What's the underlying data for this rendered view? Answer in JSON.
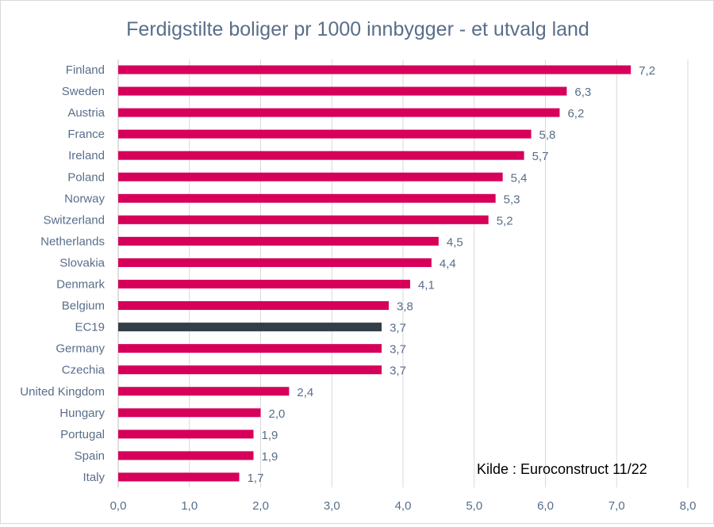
{
  "chart_data": {
    "type": "bar",
    "orientation": "horizontal",
    "title": "Ferdigstilte boliger pr 1000 innbygger - et utvalg land",
    "annotation": "Kilde : Euroconstruct 11/22",
    "categories": [
      "Finland",
      "Sweden",
      "Austria",
      "France",
      "Ireland",
      "Poland",
      "Norway",
      "Switzerland",
      "Netherlands",
      "Slovakia",
      "Denmark",
      "Belgium",
      "EC19",
      "Germany",
      "Czechia",
      "United Kingdom",
      "Hungary",
      "Portugal",
      "Spain",
      "Italy"
    ],
    "values": [
      7.2,
      6.3,
      6.2,
      5.8,
      5.7,
      5.4,
      5.3,
      5.2,
      4.5,
      4.4,
      4.1,
      3.8,
      3.7,
      3.7,
      3.7,
      2.4,
      2.0,
      1.9,
      1.9,
      1.7
    ],
    "labels": [
      "7,2",
      "6,3",
      "6,2",
      "5,8",
      "5,7",
      "5,4",
      "5,3",
      "5,2",
      "4,5",
      "4,4",
      "4,1",
      "3,8",
      "3,7",
      "3,7",
      "3,7",
      "2,4",
      "2,0",
      "1,9",
      "1,9",
      "1,7"
    ],
    "xlim": [
      0,
      8
    ],
    "xticks": [
      "0,0",
      "1,0",
      "2,0",
      "3,0",
      "4,0",
      "5,0",
      "6,0",
      "7,0",
      "8,0"
    ],
    "grid": true,
    "highlight_category": "EC19",
    "colors": {
      "bar": "#d6005a",
      "highlight": "#333f48",
      "text": "#596e89",
      "grid": "#d9d9d9"
    }
  }
}
